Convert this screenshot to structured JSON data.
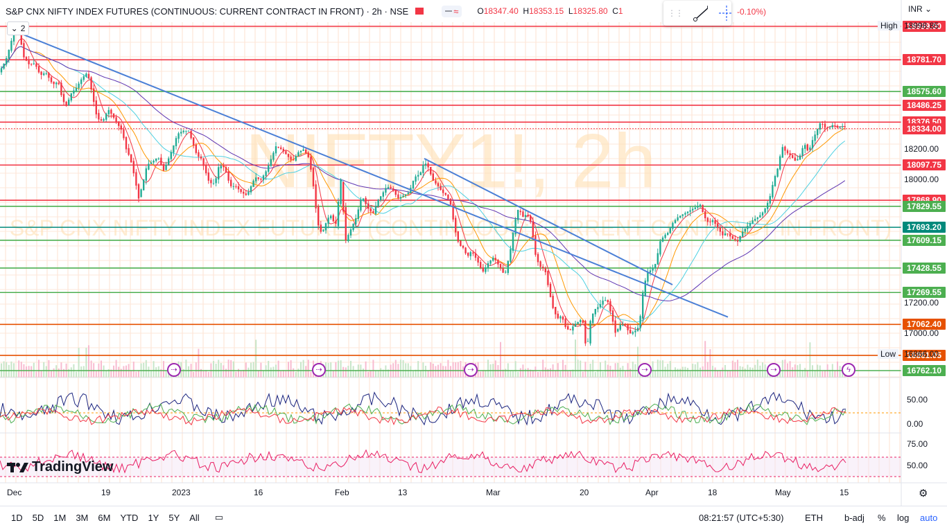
{
  "header": {
    "title": "S&P CNX NIFTY INDEX FUTURES (CONTINUOUS: CURRENT CONTRACT IN FRONT) · 2h · NSE",
    "ohlc": {
      "o_label": "O",
      "o": "18347.40",
      "h_label": "H",
      "h": "18353.15",
      "l_label": "L",
      "l": "18325.80",
      "c_label": "C",
      "c": "1"
    },
    "change": "-0.10%)",
    "indicator_count": "2",
    "wave_symbol": "≈",
    "currency": "INR"
  },
  "watermark": {
    "symbol": "NIFTY1!, 2h",
    "name": "S&P CNX NIFTY INDEX FUTURES (CONTINUOUS: CURRENT CONTRACT IN FRONT)"
  },
  "colors": {
    "up": "#22ab94",
    "down": "#f23645",
    "red_level": "#f23645",
    "green_level": "#4caf50",
    "orange_level": "#e65100",
    "teal_level": "#00897b",
    "trend": "#4a7fd6"
  },
  "chart_data": {
    "type": "candlestick",
    "y_axis": {
      "ylim": [
        16700,
        19050
      ],
      "ticks": [
        17000,
        17200,
        18000,
        18200
      ],
      "tick_labels": [
        "17000.00",
        "17200.00",
        "18000.00",
        "18200.00"
      ]
    },
    "x_axis": {
      "tick_labels": [
        "Dec",
        "19",
        "2023",
        "16",
        "Feb",
        "13",
        "Mar",
        "20",
        "Apr",
        "18",
        "May",
        "15"
      ]
    },
    "levels": [
      {
        "label": "18999.00",
        "value": 18999.0,
        "color": "#f23645"
      },
      {
        "label": "18781.70",
        "value": 18781.7,
        "color": "#f23645"
      },
      {
        "label": "18575.60",
        "value": 18575.6,
        "color": "#4caf50"
      },
      {
        "label": "18486.25",
        "value": 18486.25,
        "color": "#f23645"
      },
      {
        "label": "18376.50",
        "value": 18376.5,
        "color": "#f23645"
      },
      {
        "label": "18334.00",
        "value": 18334.0,
        "color": "#f23645"
      },
      {
        "label": "18097.75",
        "value": 18097.75,
        "color": "#f23645"
      },
      {
        "label": "17868.90",
        "value": 17868.9,
        "color": "#f23645"
      },
      {
        "label": "17829.55",
        "value": 17829.55,
        "color": "#4caf50"
      },
      {
        "label": "17693.20",
        "value": 17693.2,
        "color": "#00897b"
      },
      {
        "label": "17609.15",
        "value": 17609.15,
        "color": "#4caf50"
      },
      {
        "label": "17428.55",
        "value": 17428.55,
        "color": "#4caf50"
      },
      {
        "label": "17269.55",
        "value": 17269.55,
        "color": "#4caf50"
      },
      {
        "label": "17062.40",
        "value": 17062.4,
        "color": "#e65100"
      },
      {
        "label": "16861.05",
        "value": 16861.05,
        "color": "#e65100"
      },
      {
        "label": "16762.10",
        "value": 16762.1,
        "color": "#4caf50"
      }
    ],
    "high_marker": {
      "label": "High",
      "value_label": "18998.85",
      "value": 18998.85
    },
    "low_marker": {
      "label": "Low",
      "value_label": "16866.00",
      "value": 16866.0
    },
    "path_points": [
      [
        0,
        18700
      ],
      [
        6,
        18740
      ],
      [
        12,
        18800
      ],
      [
        18,
        18900
      ],
      [
        25,
        18990
      ],
      [
        30,
        18950
      ],
      [
        36,
        18800
      ],
      [
        44,
        18750
      ],
      [
        52,
        18760
      ],
      [
        60,
        18680
      ],
      [
        68,
        18700
      ],
      [
        78,
        18620
      ],
      [
        86,
        18640
      ],
      [
        92,
        18520
      ],
      [
        98,
        18480
      ],
      [
        104,
        18560
      ],
      [
        112,
        18600
      ],
      [
        120,
        18660
      ],
      [
        128,
        18700
      ],
      [
        134,
        18580
      ],
      [
        142,
        18400
      ],
      [
        150,
        18380
      ],
      [
        158,
        18460
      ],
      [
        164,
        18420
      ],
      [
        172,
        18360
      ],
      [
        178,
        18320
      ],
      [
        184,
        18200
      ],
      [
        190,
        18140
      ],
      [
        196,
        18020
      ],
      [
        202,
        17880
      ],
      [
        208,
        17980
      ],
      [
        214,
        18100
      ],
      [
        222,
        18120
      ],
      [
        230,
        18150
      ],
      [
        238,
        18060
      ],
      [
        246,
        18150
      ],
      [
        252,
        18220
      ],
      [
        258,
        18300
      ],
      [
        266,
        18320
      ],
      [
        274,
        18320
      ],
      [
        280,
        18240
      ],
      [
        286,
        18160
      ],
      [
        292,
        18140
      ],
      [
        298,
        18060
      ],
      [
        304,
        17980
      ],
      [
        312,
        17980
      ],
      [
        318,
        18100
      ],
      [
        326,
        18080
      ],
      [
        334,
        17960
      ],
      [
        342,
        17960
      ],
      [
        350,
        17920
      ],
      [
        358,
        17900
      ],
      [
        364,
        17960
      ],
      [
        370,
        18020
      ],
      [
        378,
        18000
      ],
      [
        386,
        18060
      ],
      [
        394,
        18150
      ],
      [
        400,
        18220
      ],
      [
        408,
        18200
      ],
      [
        416,
        18160
      ],
      [
        424,
        18120
      ],
      [
        432,
        18180
      ],
      [
        440,
        18200
      ],
      [
        448,
        18140
      ],
      [
        454,
        17960
      ],
      [
        460,
        17720
      ],
      [
        466,
        17650
      ],
      [
        472,
        17720
      ],
      [
        478,
        17780
      ],
      [
        486,
        17700
      ],
      [
        494,
        18020
      ],
      [
        500,
        17600
      ],
      [
        508,
        17680
      ],
      [
        516,
        17760
      ],
      [
        524,
        17900
      ],
      [
        532,
        17820
      ],
      [
        540,
        17780
      ],
      [
        546,
        17860
      ],
      [
        552,
        17900
      ],
      [
        560,
        17960
      ],
      [
        568,
        17940
      ],
      [
        576,
        17880
      ],
      [
        584,
        17900
      ],
      [
        592,
        17920
      ],
      [
        600,
        18020
      ],
      [
        608,
        18040
      ],
      [
        614,
        18120
      ],
      [
        620,
        18080
      ],
      [
        626,
        18000
      ],
      [
        634,
        17960
      ],
      [
        640,
        17920
      ],
      [
        646,
        17900
      ],
      [
        652,
        17840
      ],
      [
        658,
        17680
      ],
      [
        664,
        17580
      ],
      [
        670,
        17560
      ],
      [
        676,
        17500
      ],
      [
        682,
        17540
      ],
      [
        690,
        17480
      ],
      [
        698,
        17400
      ],
      [
        706,
        17460
      ],
      [
        714,
        17500
      ],
      [
        722,
        17440
      ],
      [
        730,
        17380
      ],
      [
        738,
        17540
      ],
      [
        744,
        17720
      ],
      [
        750,
        17820
      ],
      [
        756,
        17760
      ],
      [
        762,
        17780
      ],
      [
        768,
        17720
      ],
      [
        774,
        17520
      ],
      [
        780,
        17440
      ],
      [
        788,
        17420
      ],
      [
        794,
        17280
      ],
      [
        800,
        17160
      ],
      [
        806,
        17100
      ],
      [
        812,
        17120
      ],
      [
        818,
        17040
      ],
      [
        824,
        17020
      ],
      [
        830,
        17060
      ],
      [
        836,
        17080
      ],
      [
        842,
        17100
      ],
      [
        848,
        16880
      ],
      [
        854,
        17100
      ],
      [
        860,
        17160
      ],
      [
        866,
        17180
      ],
      [
        872,
        17220
      ],
      [
        878,
        17220
      ],
      [
        884,
        17120
      ],
      [
        890,
        17000
      ],
      [
        896,
        17060
      ],
      [
        904,
        17060
      ],
      [
        910,
        17000
      ],
      [
        918,
        17020
      ],
      [
        924,
        17050
      ],
      [
        930,
        17300
      ],
      [
        936,
        17400
      ],
      [
        942,
        17420
      ],
      [
        948,
        17460
      ],
      [
        954,
        17600
      ],
      [
        960,
        17640
      ],
      [
        966,
        17660
      ],
      [
        972,
        17720
      ],
      [
        980,
        17760
      ],
      [
        988,
        17780
      ],
      [
        996,
        17800
      ],
      [
        1004,
        17820
      ],
      [
        1012,
        17840
      ],
      [
        1018,
        17760
      ],
      [
        1024,
        17720
      ],
      [
        1030,
        17740
      ],
      [
        1036,
        17700
      ],
      [
        1044,
        17640
      ],
      [
        1050,
        17660
      ],
      [
        1058,
        17620
      ],
      [
        1066,
        17600
      ],
      [
        1072,
        17660
      ],
      [
        1080,
        17700
      ],
      [
        1088,
        17740
      ],
      [
        1096,
        17760
      ],
      [
        1104,
        17800
      ],
      [
        1112,
        17880
      ],
      [
        1118,
        18000
      ],
      [
        1124,
        18080
      ],
      [
        1130,
        18220
      ],
      [
        1136,
        18180
      ],
      [
        1142,
        18160
      ],
      [
        1150,
        18120
      ],
      [
        1156,
        18160
      ],
      [
        1162,
        18240
      ],
      [
        1168,
        18180
      ],
      [
        1174,
        18260
      ],
      [
        1180,
        18320
      ],
      [
        1186,
        18380
      ],
      [
        1192,
        18340
      ],
      [
        1198,
        18340
      ],
      [
        1204,
        18360
      ],
      [
        1210,
        18340
      ],
      [
        1216,
        18350
      ],
      [
        1222,
        18347
      ]
    ],
    "trendlines": [
      {
        "from": [
          20,
          18970
        ],
        "to": [
          1050,
          17110
        ]
      },
      {
        "from": [
          612,
          18140
        ],
        "to": [
          970,
          17320
        ]
      }
    ],
    "oscillator1": {
      "label": "50.00",
      "label2": "0.00"
    },
    "oscillator2": {
      "label": "75.00",
      "label2": "50.00"
    }
  },
  "event_markers": [
    "⇢",
    "⇢",
    "⇢",
    "⇢",
    "⇢",
    "ϟ"
  ],
  "bottom_bar": {
    "ranges": [
      "1D",
      "5D",
      "1M",
      "3M",
      "6M",
      "YTD",
      "1Y",
      "5Y",
      "All"
    ],
    "time": "08:21:57 (UTC+5:30)",
    "session": "ETH",
    "adj": "b-adj",
    "percent": "%",
    "log": "log",
    "auto": "auto"
  },
  "logo": {
    "text": "TradingView"
  }
}
